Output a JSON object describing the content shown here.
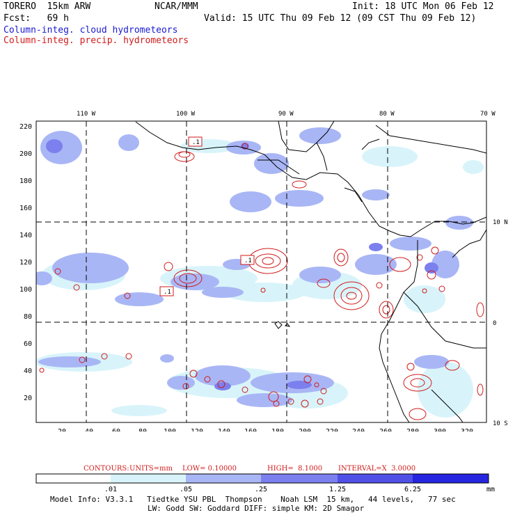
{
  "header": {
    "model": "TORERO  15km ARW",
    "org": "NCAR/MMM",
    "init": "Init: 18 UTC Mon 06 Feb 12",
    "fcst": "Fcst:   69 h",
    "valid": "Valid: 15 UTC Thu 09 Feb 12 (09 CST Thu 09 Feb 12)",
    "field1": "Column-integ. cloud hydrometeors",
    "field2": "Column-integ. precip. hydrometeors"
  },
  "axes": {
    "lon_labels": [
      "110 W",
      "100 W",
      "90 W",
      "80 W",
      "70 W"
    ],
    "lat_labels": [
      "10 N",
      "0",
      "10 S"
    ],
    "y_ticks": [
      "220",
      "200",
      "180",
      "160",
      "140",
      "120",
      "100",
      "80",
      "60",
      "40",
      "20"
    ],
    "x_ticks": [
      "20",
      "40",
      "60",
      "80",
      "100",
      "120",
      "140",
      "160",
      "180",
      "200",
      "220",
      "240",
      "260",
      "280",
      "300",
      "320"
    ]
  },
  "contour_labels": [
    ".1",
    ".1",
    ".1"
  ],
  "contour_info": {
    "label": "CONTOURS:",
    "units": "UNITS=mm",
    "low": "LOW= 0.10000",
    "high": "HIGH=  8.1000",
    "interval": "INTERVAL=X  3.0000"
  },
  "colorbar": {
    "ticks": [
      ".01",
      ".05",
      ".25",
      "1.25",
      "6.25"
    ],
    "unit": "mm",
    "colors": [
      "#ffffff",
      "#d8f4fa",
      "#a9b6f5",
      "#7c80ee",
      "#5050e6",
      "#2626e0"
    ]
  },
  "footer": {
    "line1": "Model Info: V3.3.1   Tiedtke YSU PBL  Thompson    Noah LSM  15 km,   44 levels,   77 sec",
    "line2": "LW: Godd SW: Goddard DIFF: simple KM: 2D Smagor"
  }
}
